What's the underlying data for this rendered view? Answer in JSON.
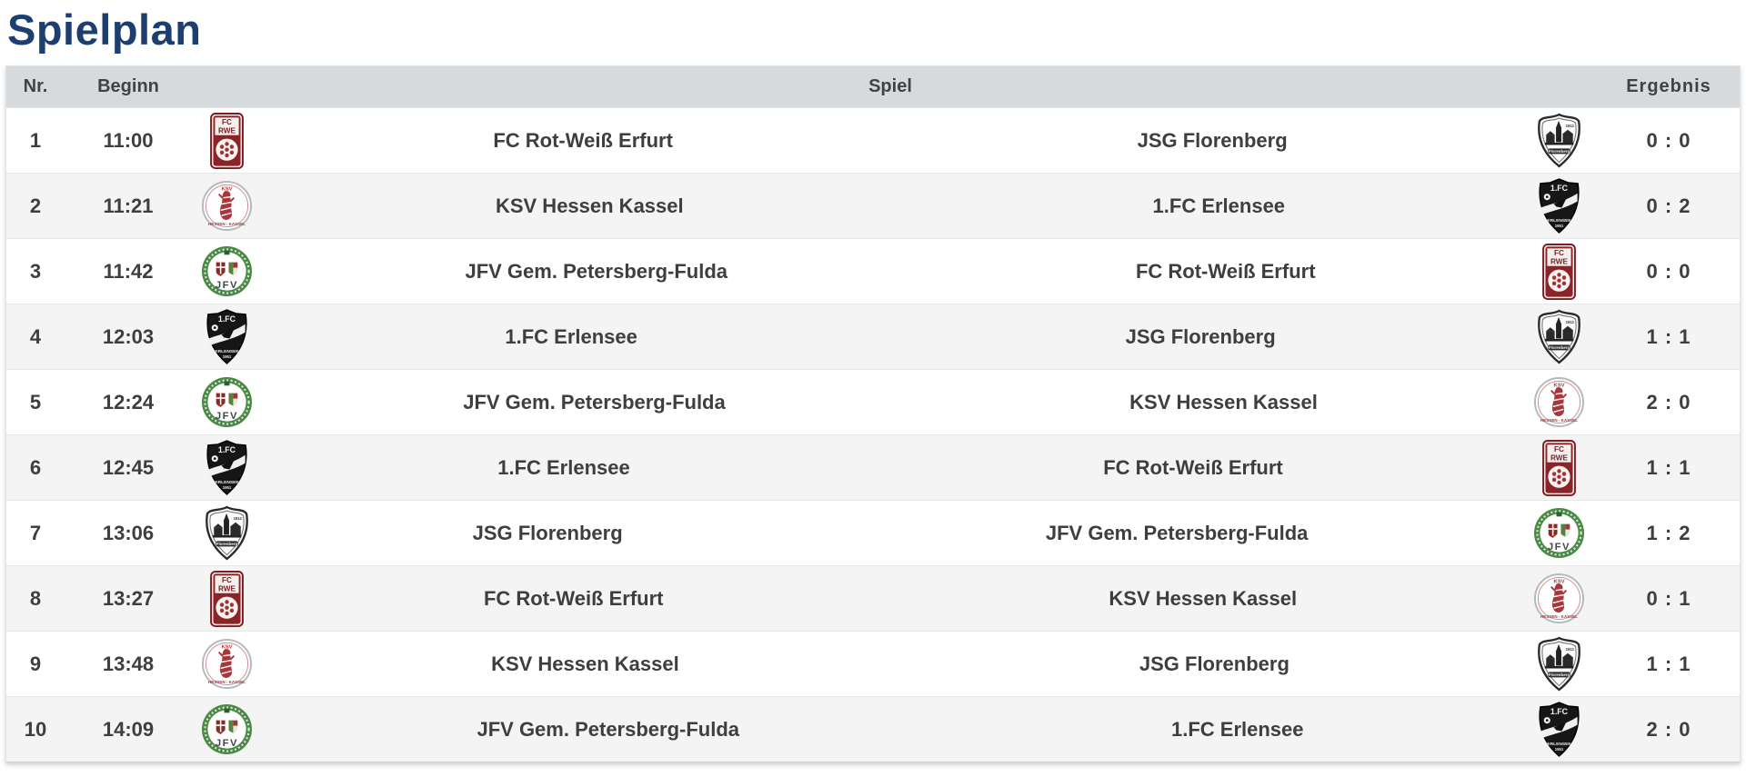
{
  "page": {
    "title": "Spielplan"
  },
  "table": {
    "headers": {
      "nr": "Nr.",
      "beginn": "Beginn",
      "spiel": "Spiel",
      "ergebnis": "Ergebnis"
    },
    "rows": [
      {
        "nr": "1",
        "time": "11:00",
        "home": "FC Rot-Weiß Erfurt",
        "home_logo": "rwe",
        "away": "JSG Florenberg",
        "away_logo": "jsg",
        "score": "0 : 0"
      },
      {
        "nr": "2",
        "time": "11:21",
        "home": "KSV Hessen Kassel",
        "home_logo": "ksv",
        "away": "1.FC Erlensee",
        "away_logo": "erlensee",
        "score": "0 : 2"
      },
      {
        "nr": "3",
        "time": "11:42",
        "home": "JFV Gem. Petersberg-Fulda",
        "home_logo": "jfv",
        "away": "FC Rot-Weiß Erfurt",
        "away_logo": "rwe",
        "score": "0 : 0"
      },
      {
        "nr": "4",
        "time": "12:03",
        "home": "1.FC Erlensee",
        "home_logo": "erlensee",
        "away": "JSG Florenberg",
        "away_logo": "jsg",
        "score": "1 : 1"
      },
      {
        "nr": "5",
        "time": "12:24",
        "home": "JFV Gem. Petersberg-Fulda",
        "home_logo": "jfv",
        "away": "KSV Hessen Kassel",
        "away_logo": "ksv",
        "score": "2 : 0"
      },
      {
        "nr": "6",
        "time": "12:45",
        "home": "1.FC Erlensee",
        "home_logo": "erlensee",
        "away": "FC Rot-Weiß Erfurt",
        "away_logo": "rwe",
        "score": "1 : 1"
      },
      {
        "nr": "7",
        "time": "13:06",
        "home": "JSG Florenberg",
        "home_logo": "jsg",
        "away": "JFV Gem. Petersberg-Fulda",
        "away_logo": "jfv",
        "score": "1 : 2"
      },
      {
        "nr": "8",
        "time": "13:27",
        "home": "FC Rot-Weiß Erfurt",
        "home_logo": "rwe",
        "away": "KSV Hessen Kassel",
        "away_logo": "ksv",
        "score": "0 : 1"
      },
      {
        "nr": "9",
        "time": "13:48",
        "home": "KSV Hessen Kassel",
        "home_logo": "ksv",
        "away": "JSG Florenberg",
        "away_logo": "jsg",
        "score": "1 : 1"
      },
      {
        "nr": "10",
        "time": "14:09",
        "home": "JFV Gem. Petersberg-Fulda",
        "home_logo": "jfv",
        "away": "1.FC Erlensee",
        "away_logo": "erlensee",
        "score": "2 : 0"
      }
    ],
    "team_logo_names": {
      "rwe": "FC Rot-Weiß Erfurt badge",
      "ksv": "KSV Hessen Kassel badge",
      "jfv": "JFV Gem. Petersberg-Fulda badge",
      "erlensee": "1.FC Erlensee badge",
      "jsg": "JSG Florenberg badge"
    }
  },
  "colors": {
    "title": "#1d3f6f",
    "header_bg": "#d7dadd",
    "row_bg": "#ffffff",
    "row_alt_bg": "#f4f4f4",
    "text": "#3c3e40"
  }
}
